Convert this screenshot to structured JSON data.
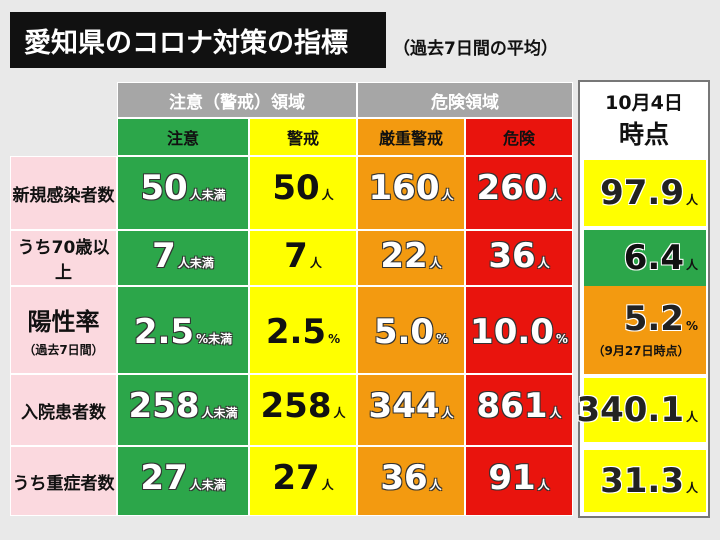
{
  "title": "愛知県のコロナ対策の指標",
  "subtitle": "（過去7日間の平均）",
  "groups": {
    "caution": "注意（警戒）領域",
    "danger": "危険領域"
  },
  "levels": [
    "注意",
    "警戒",
    "厳重警戒",
    "危険"
  ],
  "current_header": {
    "line1": "10月4日",
    "line2": "時点"
  },
  "rows": [
    {
      "label": "新規感染者数",
      "note": "",
      "cells": [
        {
          "num": "50",
          "unit": "人未満"
        },
        {
          "num": "50",
          "unit": "人"
        },
        {
          "num": "160",
          "unit": "人"
        },
        {
          "num": "260",
          "unit": "人"
        }
      ],
      "current": {
        "num": "97.9",
        "unit": "人",
        "note": ""
      }
    },
    {
      "label": "うち70歳以上",
      "note": "",
      "cells": [
        {
          "num": "7",
          "unit": "人未満"
        },
        {
          "num": "7",
          "unit": "人"
        },
        {
          "num": "22",
          "unit": "人"
        },
        {
          "num": "36",
          "unit": "人"
        }
      ],
      "current": {
        "num": "6.4",
        "unit": "人",
        "note": ""
      }
    },
    {
      "label": "陽性率",
      "note": "（過去7日間）",
      "cells": [
        {
          "num": "2.5",
          "unit": "%未満"
        },
        {
          "num": "2.5",
          "unit": "%"
        },
        {
          "num": "5.0",
          "unit": "%"
        },
        {
          "num": "10.0",
          "unit": "%"
        }
      ],
      "current": {
        "num": "5.2",
        "unit": "%",
        "note": "（9月27日時点）"
      }
    },
    {
      "label": "入院患者数",
      "note": "",
      "cells": [
        {
          "num": "258",
          "unit": "人未満"
        },
        {
          "num": "258",
          "unit": "人"
        },
        {
          "num": "344",
          "unit": "人"
        },
        {
          "num": "861",
          "unit": "人"
        }
      ],
      "current": {
        "num": "340.1",
        "unit": "人",
        "note": ""
      }
    },
    {
      "label": "うち重症者数",
      "note": "",
      "cells": [
        {
          "num": "27",
          "unit": "人未満"
        },
        {
          "num": "27",
          "unit": "人"
        },
        {
          "num": "36",
          "unit": "人"
        },
        {
          "num": "91",
          "unit": "人"
        }
      ],
      "current": {
        "num": "31.3",
        "unit": "人",
        "note": ""
      }
    }
  ],
  "colors": {
    "caution": "#2ca64a",
    "warning": "#ffff00",
    "severe": "#f39a10",
    "danger": "#e9140d",
    "current_by_row": [
      "#ffff00",
      "#2ca64a",
      "#f39a10",
      "#ffff00",
      "#ffff00"
    ]
  }
}
